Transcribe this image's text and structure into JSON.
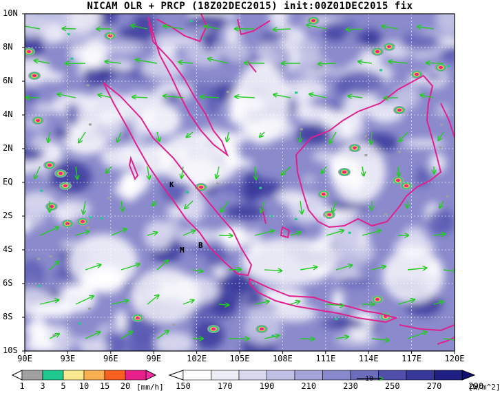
{
  "title": "NICAM OLR + PRCP (18Z02DEC2015) init:00Z01DEC2015 fix",
  "map": {
    "lat_labels": [
      "10N",
      "8N",
      "6N",
      "4N",
      "2N",
      "EQ",
      "2S",
      "4S",
      "6S",
      "8S",
      "10S"
    ],
    "lon_labels": [
      "90E",
      "93E",
      "96E",
      "99E",
      "102E",
      "105E",
      "108E",
      "111E",
      "114E",
      "117E",
      "120E"
    ],
    "place_labels": [
      "K",
      "M",
      "B"
    ],
    "coastline_color": "#e0208c",
    "vector_color": "#22cc22",
    "reference_vector": "10"
  },
  "precip_colorbar": {
    "unit": "[mm/h]",
    "labels": [
      "1",
      "3",
      "5",
      "10",
      "15",
      "20"
    ],
    "colors": [
      "#a0a0a0",
      "#20c890",
      "#f8e890",
      "#f8b050",
      "#f86020",
      "#e8208c",
      "#ff2aa8"
    ]
  },
  "olr_colorbar": {
    "unit": "[W/m^2]",
    "labels": [
      "150",
      "170",
      "190",
      "210",
      "230",
      "250",
      "270",
      "290"
    ],
    "colors": [
      "#ffffff",
      "#ececf6",
      "#d8d8ee",
      "#c0c0e4",
      "#a4a4d8",
      "#8888cc",
      "#6c6cbc",
      "#5050ac",
      "#383898",
      "#202084",
      "#101070"
    ]
  }
}
